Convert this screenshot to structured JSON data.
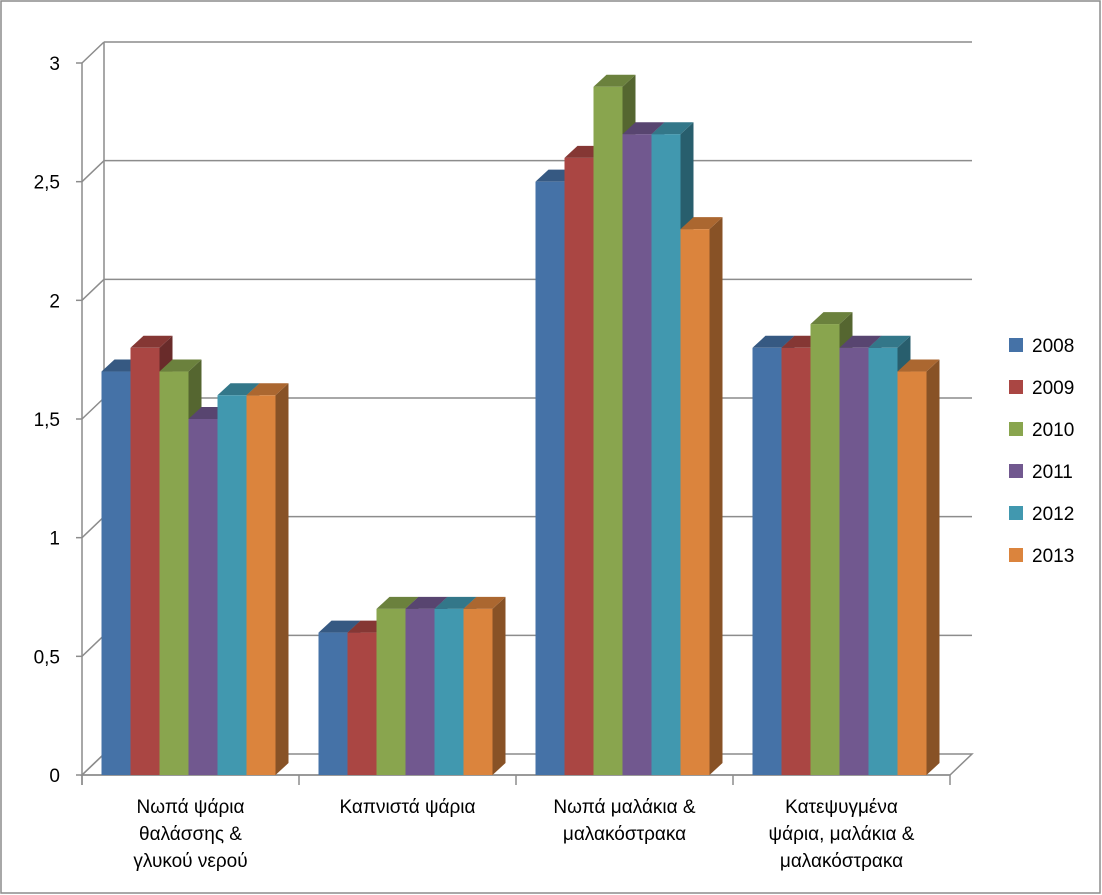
{
  "chart_data": {
    "type": "bar",
    "style": "3d-clustered-column",
    "categories": [
      [
        "Νωπά ψάρια",
        "θαλάσσης &",
        "γλυκού νερού"
      ],
      [
        "Καπνιστά ψάρια"
      ],
      [
        "Νωπά μαλάκια &",
        "μαλακόστρακα"
      ],
      [
        "Κατεψυγμένα",
        "ψάρια, μαλάκια &",
        "μαλακόστρακα"
      ]
    ],
    "series": [
      {
        "name": "2008",
        "color": "#4572A7",
        "values": [
          1.7,
          0.6,
          2.5,
          1.8
        ]
      },
      {
        "name": "2009",
        "color": "#AA4643",
        "values": [
          1.8,
          0.6,
          2.6,
          1.8
        ]
      },
      {
        "name": "2010",
        "color": "#89A54E",
        "values": [
          1.7,
          0.7,
          2.9,
          1.9
        ]
      },
      {
        "name": "2011",
        "color": "#71588F",
        "values": [
          1.5,
          0.7,
          2.7,
          1.8
        ]
      },
      {
        "name": "2012",
        "color": "#4198AF",
        "values": [
          1.6,
          0.7,
          2.7,
          1.8
        ]
      },
      {
        "name": "2013",
        "color": "#DB843D",
        "values": [
          1.6,
          0.7,
          2.3,
          1.7
        ]
      }
    ],
    "ylim": [
      0,
      3
    ],
    "yticks": [
      {
        "value": 0,
        "label": "0"
      },
      {
        "value": 0.5,
        "label": "0,5"
      },
      {
        "value": 1,
        "label": "1"
      },
      {
        "value": 1.5,
        "label": "1,5"
      },
      {
        "value": 2,
        "label": "2"
      },
      {
        "value": 2.5,
        "label": "2,5"
      },
      {
        "value": 3,
        "label": "3"
      }
    ],
    "title": "",
    "xlabel": "",
    "ylabel": "",
    "grid": true,
    "legend_position": "right"
  }
}
